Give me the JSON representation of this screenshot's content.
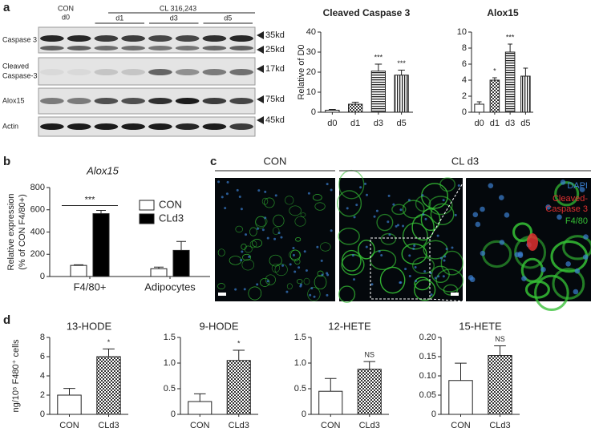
{
  "panel_labels": [
    "a",
    "b",
    "c",
    "d"
  ],
  "blot": {
    "control": "CON",
    "control_day": "d0",
    "treatment": "CL 316,243",
    "days": [
      "d1",
      "d3",
      "d5"
    ],
    "rows": [
      [
        "Caspase 3"
      ],
      [
        "Cleaved",
        "Caspase-3"
      ],
      [
        "Alox15"
      ],
      [
        "Actin"
      ]
    ],
    "markers": [
      "35kd",
      "25kd",
      "17kd",
      "75kd",
      "45kd"
    ]
  },
  "micrographs": {
    "groups": [
      "CON",
      "CL d3"
    ],
    "stains": [
      "DAPI",
      "Cleaved-",
      "Caspase 3",
      "F4/80"
    ],
    "stain_colors": [
      "#3a7fd0",
      "#e03030",
      "#e03030",
      "#35c035"
    ]
  },
  "chart_data": [
    {
      "type": "bar",
      "title": "Cleaved Caspase 3",
      "y_label": "Relative of D0",
      "categories": [
        "d0",
        "d1",
        "d3",
        "d5"
      ],
      "values": [
        1,
        4,
        20.5,
        18.5
      ],
      "errors": [
        0.4,
        1,
        3.5,
        2.5
      ],
      "patterns": [
        "none",
        "checker",
        "hstripe",
        "vstripe"
      ],
      "annotations": [
        null,
        null,
        "***",
        "***"
      ],
      "ylim": [
        0,
        40
      ],
      "yticks": [
        0,
        10,
        20,
        30,
        40
      ]
    },
    {
      "type": "bar",
      "title": "Alox15",
      "categories": [
        "d0",
        "d1",
        "d3",
        "d5"
      ],
      "values": [
        1,
        4,
        7.5,
        4.5
      ],
      "errors": [
        0.3,
        0.3,
        1,
        1
      ],
      "patterns": [
        "none",
        "checker",
        "hstripe",
        "vstripe"
      ],
      "annotations": [
        null,
        "*",
        "***",
        null
      ],
      "ylim": [
        0,
        10
      ],
      "yticks": [
        0,
        2,
        4,
        6,
        8,
        10
      ]
    },
    {
      "type": "grouped_bar",
      "title": "Alox15",
      "y_label": [
        "Relative expression",
        "(% of CON F4/80+)"
      ],
      "categories": [
        "F4/80+",
        "Adipocytes"
      ],
      "series": [
        {
          "name": "CON",
          "color": "#ffffff",
          "values": [
            100,
            70
          ],
          "errors": [
            5,
            15
          ]
        },
        {
          "name": "CLd3",
          "color": "#000000",
          "values": [
            565,
            235
          ],
          "errors": [
            30,
            80
          ]
        }
      ],
      "annotations": [
        "***",
        null
      ],
      "legend": "upper right",
      "ylim": [
        0,
        800
      ],
      "yticks": [
        0,
        200,
        400,
        600,
        800
      ]
    },
    {
      "type": "bar",
      "title": "13-HODE",
      "y_label": "ng/10⁵ F480⁺ cells",
      "categories": [
        "CON",
        "CLd3"
      ],
      "values": [
        2,
        6
      ],
      "errors": [
        0.7,
        0.8
      ],
      "patterns": [
        "none",
        "checker"
      ],
      "annotations": [
        null,
        "*"
      ],
      "ylim": [
        0,
        8
      ],
      "yticks": [
        0,
        2,
        4,
        6,
        8
      ]
    },
    {
      "type": "bar",
      "title": "9-HODE",
      "categories": [
        "CON",
        "CLd3"
      ],
      "values": [
        0.25,
        1.05
      ],
      "errors": [
        0.15,
        0.2
      ],
      "patterns": [
        "none",
        "checker"
      ],
      "annotations": [
        null,
        "*"
      ],
      "ylim": [
        0,
        1.5
      ],
      "yticks": [
        0,
        0.5,
        {
          "value": 1,
          "label": "1.0"
        },
        1.5
      ]
    },
    {
      "type": "bar",
      "title": "12-HETE",
      "categories": [
        "CON",
        "CLd3"
      ],
      "values": [
        0.45,
        0.88
      ],
      "errors": [
        0.25,
        0.15
      ],
      "patterns": [
        "none",
        "checker"
      ],
      "annotations": [
        null,
        "NS"
      ],
      "ylim": [
        0,
        1.5
      ],
      "yticks": [
        0,
        0.5,
        {
          "value": 1,
          "label": "1.0"
        },
        1.5
      ]
    },
    {
      "type": "bar",
      "title": "15-HETE",
      "categories": [
        "CON",
        "CLd3"
      ],
      "values": [
        0.088,
        0.153
      ],
      "errors": [
        0.045,
        0.025
      ],
      "patterns": [
        "none",
        "checker"
      ],
      "annotations": [
        null,
        "NS"
      ],
      "ylim": [
        0,
        0.2
      ],
      "yticks": [
        0,
        0.05,
        {
          "value": 0.1,
          "label": "0.10"
        },
        0.15,
        {
          "value": 0.2,
          "label": "0.20"
        }
      ]
    }
  ]
}
